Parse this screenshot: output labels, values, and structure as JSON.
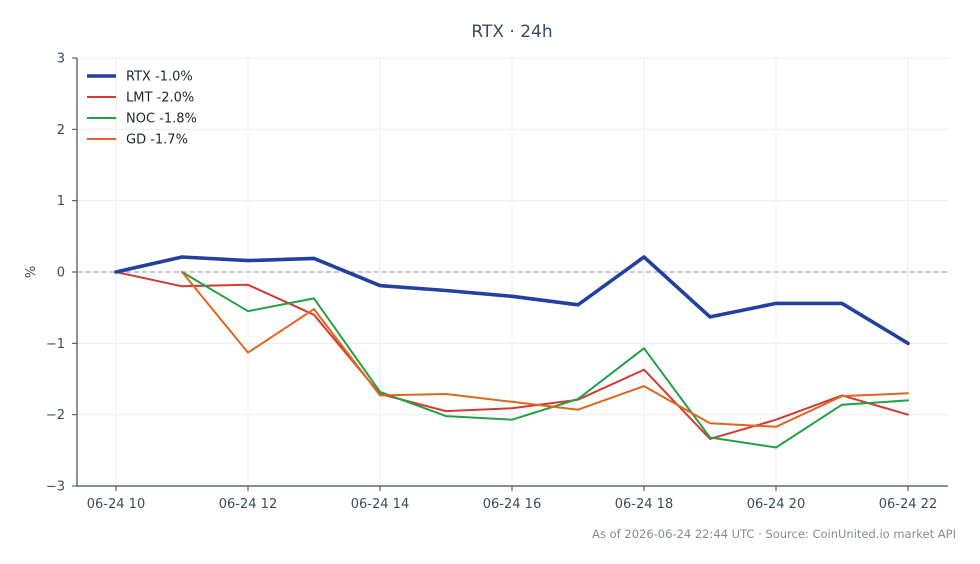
{
  "chart_data": {
    "type": "line",
    "title": "RTX · 24h",
    "xlabel": "",
    "ylabel": "%",
    "x": [
      "06-24 10",
      "06-24 11",
      "06-24 12",
      "06-24 13",
      "06-24 14",
      "06-24 15",
      "06-24 16",
      "06-24 17",
      "06-24 18",
      "06-24 19",
      "06-24 20",
      "06-24 21",
      "06-24 22"
    ],
    "x_tick_labels": [
      "06-24 10",
      "06-24 12",
      "06-24 14",
      "06-24 16",
      "06-24 18",
      "06-24 20",
      "06-24 22"
    ],
    "ylim": [
      -3,
      3
    ],
    "y_ticks": [
      3,
      2,
      1,
      0,
      -1,
      -2,
      -3
    ],
    "y_tick_labels": [
      "3",
      "2",
      "1",
      "0",
      "−1",
      "−2",
      "−3"
    ],
    "grid": true,
    "legend_position": "top-left",
    "reference_line": {
      "y": 0,
      "style": "dashed",
      "color": "#8e98b0"
    },
    "series": [
      {
        "name": "RTX",
        "label": "RTX -1.0%",
        "color": "#2340a0",
        "emphasis": true,
        "values": [
          0.0,
          0.21,
          0.16,
          0.19,
          -0.19,
          -0.26,
          -0.34,
          -0.46,
          0.21,
          -0.63,
          -0.44,
          -0.44,
          -1.0
        ]
      },
      {
        "name": "LMT",
        "label": "LMT -2.0%",
        "color": "#d33a31",
        "emphasis": false,
        "values": [
          0.0,
          -0.2,
          -0.18,
          -0.6,
          -1.71,
          -1.95,
          -1.91,
          -1.79,
          -1.37,
          -2.34,
          -2.07,
          -1.73,
          -2.0
        ]
      },
      {
        "name": "NOC",
        "label": "NOC -1.8%",
        "color": "#23a046",
        "emphasis": false,
        "values": [
          null,
          0.0,
          -0.55,
          -0.37,
          -1.68,
          -2.02,
          -2.07,
          -1.78,
          -1.07,
          -2.32,
          -2.46,
          -1.86,
          -1.8
        ]
      },
      {
        "name": "GD",
        "label": "GD -1.7%",
        "color": "#e0661f",
        "emphasis": false,
        "values": [
          null,
          0.0,
          -1.13,
          -0.52,
          -1.73,
          -1.71,
          -1.82,
          -1.93,
          -1.6,
          -2.12,
          -2.17,
          -1.74,
          -1.7
        ]
      }
    ],
    "source_note": "As of 2026-06-24 22:44 UTC · Source: CoinUnited.io market API"
  }
}
